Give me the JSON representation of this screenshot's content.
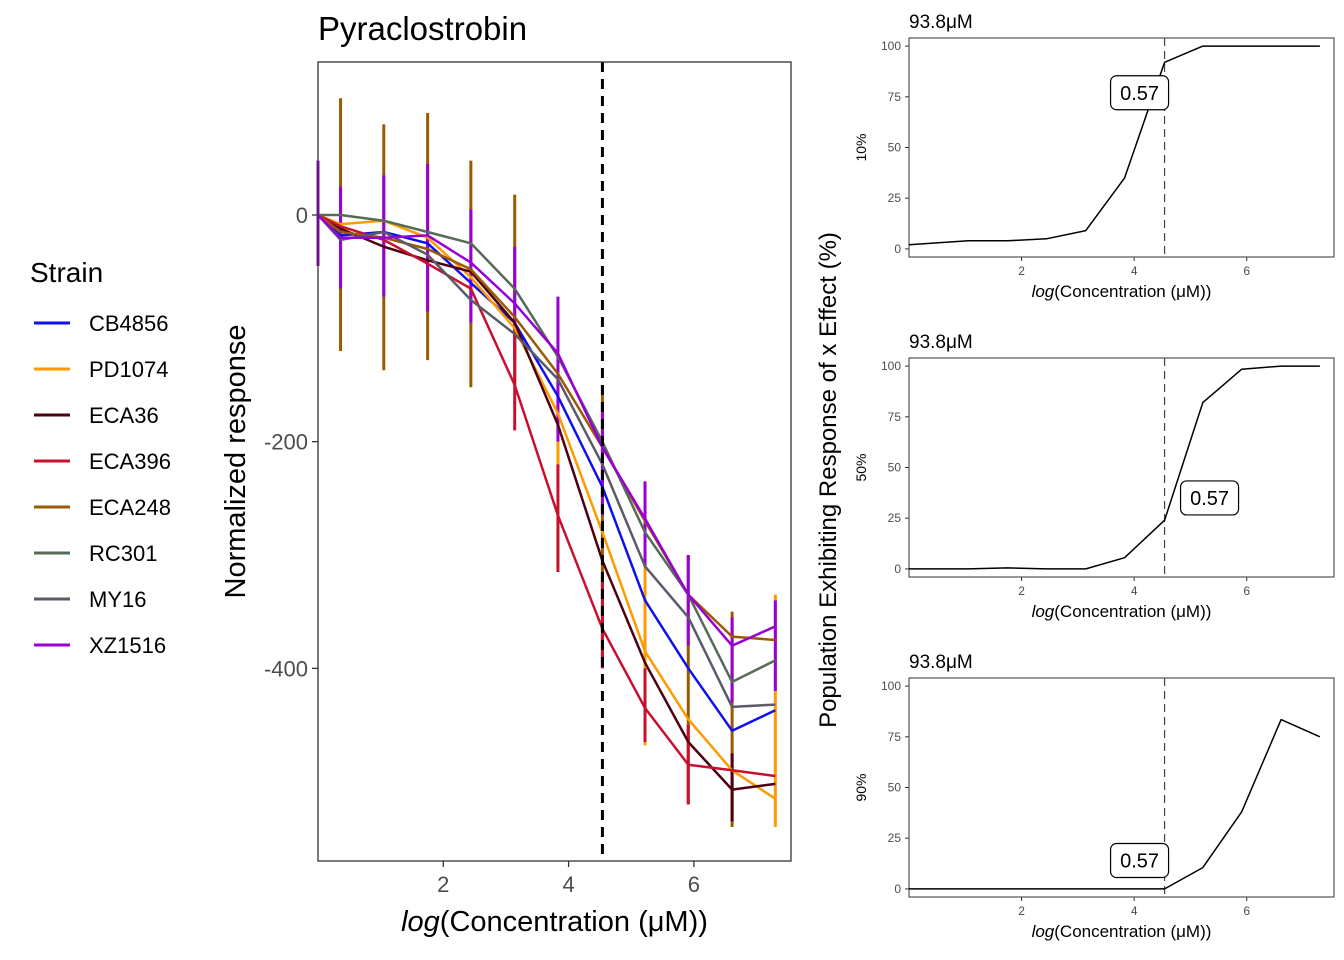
{
  "chart_data": [
    {
      "type": "line",
      "title": "Pyraclostrobin",
      "xlabel_italic": "log",
      "xlabel_rest": "Concentration (μM)",
      "ylabel": "Normalized response",
      "xlim": [
        0,
        7.55
      ],
      "ylim": [
        -570,
        135
      ],
      "xticks": [
        2,
        4,
        6
      ],
      "yticks": [
        0,
        -200,
        -400
      ],
      "ytick_labels": [
        "0",
        "-200",
        "-400"
      ],
      "vline": 4.54,
      "legend": {
        "title": "Strain",
        "position": "left",
        "entries": [
          "CB4856",
          "PD1074",
          "ECA36",
          "ECA396",
          "ECA248",
          "RC301",
          "MY16",
          "XZ1516"
        ]
      },
      "x": [
        0,
        0.36,
        1.05,
        1.75,
        2.44,
        3.14,
        3.83,
        4.54,
        5.22,
        5.91,
        6.61,
        7.3
      ],
      "series": [
        {
          "name": "CB4856",
          "color": "#1010ee",
          "values": [
            0,
            -18,
            -15,
            -25,
            -60,
            -95,
            -160,
            -240,
            -340,
            -400,
            -455,
            -437
          ]
        },
        {
          "name": "PD1074",
          "color": "#ff9a00",
          "values": [
            0,
            -8,
            -5,
            -20,
            -55,
            -100,
            -175,
            -280,
            -385,
            -445,
            -490,
            -515
          ]
        },
        {
          "name": "ECA36",
          "color": "#4d0012",
          "values": [
            0,
            -12,
            -28,
            -40,
            -50,
            -95,
            -185,
            -305,
            -395,
            -465,
            -507,
            -502
          ]
        },
        {
          "name": "ECA396",
          "color": "#c8102e",
          "values": [
            0,
            -10,
            -22,
            -43,
            -65,
            -150,
            -265,
            -365,
            -435,
            -485,
            -490,
            -495
          ]
        },
        {
          "name": "ECA248",
          "color": "#9a5a00",
          "values": [
            0,
            -15,
            -20,
            -30,
            -48,
            -90,
            -140,
            -205,
            -270,
            -335,
            -372,
            -375
          ]
        },
        {
          "name": "RC301",
          "color": "#556b55",
          "values": [
            0,
            0,
            -5,
            -15,
            -25,
            -65,
            -125,
            -200,
            -280,
            -335,
            -412,
            -393
          ]
        },
        {
          "name": "MY16",
          "color": "#5a5a6a",
          "values": [
            0,
            -22,
            -15,
            -35,
            -75,
            -105,
            -145,
            -220,
            -310,
            -355,
            -434,
            -432
          ]
        },
        {
          "name": "XZ1516",
          "color": "#9a00d6",
          "values": [
            0,
            -20,
            -20,
            -18,
            -42,
            -78,
            -122,
            -205,
            -268,
            -335,
            -380,
            -363
          ]
        }
      ],
      "error_bars": [
        {
          "x": 0.36,
          "low": -120,
          "high": 103,
          "color": "#9a5a00"
        },
        {
          "x": 1.05,
          "low": -137,
          "high": 80,
          "color": "#9a5a00"
        },
        {
          "x": 1.75,
          "low": -128,
          "high": 90,
          "color": "#9a5a00"
        },
        {
          "x": 2.44,
          "low": -152,
          "high": 48,
          "color": "#9a5a00"
        },
        {
          "x": 3.14,
          "low": -150,
          "high": 18,
          "color": "#9a5a00"
        },
        {
          "x": 3.83,
          "low": -225,
          "high": -80,
          "color": "#ff9a00"
        },
        {
          "x": 4.54,
          "low": -400,
          "high": -150,
          "color": "#9a5a00"
        },
        {
          "x": 5.22,
          "low": -468,
          "high": -300,
          "color": "#ff9a00"
        },
        {
          "x": 5.91,
          "low": -520,
          "high": -300,
          "color": "#9a5a00"
        },
        {
          "x": 6.61,
          "low": -540,
          "high": -350,
          "color": "#9a5a00"
        },
        {
          "x": 7.3,
          "low": -540,
          "high": -335,
          "color": "#ff9a00"
        },
        {
          "x": 0,
          "low": -45,
          "high": 48,
          "color": "#9a00d6"
        },
        {
          "x": 0.36,
          "low": -65,
          "high": 25,
          "color": "#9a00d6"
        },
        {
          "x": 1.05,
          "low": -72,
          "high": 35,
          "color": "#9a00d6"
        },
        {
          "x": 1.75,
          "low": -85,
          "high": 45,
          "color": "#9a00d6"
        },
        {
          "x": 2.44,
          "low": -95,
          "high": 5,
          "color": "#9a00d6"
        },
        {
          "x": 3.14,
          "low": -128,
          "high": -28,
          "color": "#9a00d6"
        },
        {
          "x": 3.83,
          "low": -200,
          "high": -72,
          "color": "#9a00d6"
        },
        {
          "x": 4.54,
          "low": -265,
          "high": -165,
          "color": "#9a00d6"
        },
        {
          "x": 5.22,
          "low": -310,
          "high": -235,
          "color": "#9a00d6"
        },
        {
          "x": 5.91,
          "low": -380,
          "high": -300,
          "color": "#9a00d6"
        },
        {
          "x": 6.61,
          "low": -430,
          "high": -355,
          "color": "#9a00d6"
        },
        {
          "x": 7.3,
          "low": -420,
          "high": -340,
          "color": "#9a00d6"
        },
        {
          "x": 3.14,
          "low": -190,
          "high": -100,
          "color": "#c8102e"
        },
        {
          "x": 3.83,
          "low": -315,
          "high": -220,
          "color": "#c8102e"
        },
        {
          "x": 4.54,
          "low": -400,
          "high": -320,
          "color": "#c8102e"
        },
        {
          "x": 5.22,
          "low": -465,
          "high": -400,
          "color": "#c8102e"
        },
        {
          "x": 5.91,
          "low": -520,
          "high": -450,
          "color": "#c8102e"
        },
        {
          "x": 6.61,
          "low": -535,
          "high": -475,
          "color": "#4d0012"
        }
      ]
    },
    {
      "type": "line",
      "title": "93.8μM",
      "ylabel": "10%",
      "xlabel_italic": "log",
      "xlabel_rest": "Concentration (μM)",
      "xlim": [
        0,
        7.55
      ],
      "ylim": [
        -4,
        104
      ],
      "xticks": [
        2,
        4,
        6
      ],
      "yticks": [
        0,
        25,
        50,
        75,
        100
      ],
      "vline": 4.54,
      "annotation": {
        "text": "0.57",
        "x": 4.54,
        "y": 77
      },
      "x": [
        0,
        1.05,
        1.75,
        2.44,
        3.14,
        3.83,
        4.54,
        5.22,
        5.91,
        6.61,
        7.3
      ],
      "values": [
        2,
        4,
        4,
        5,
        9,
        35,
        92,
        100,
        100,
        100,
        100
      ]
    },
    {
      "type": "line",
      "title": "93.8μM",
      "ylabel": "50%",
      "xlabel_italic": "log",
      "xlabel_rest": "Concentration (μM)",
      "xlim": [
        0,
        7.55
      ],
      "ylim": [
        -4,
        104
      ],
      "xticks": [
        2,
        4,
        6
      ],
      "yticks": [
        0,
        25,
        50,
        75,
        100
      ],
      "vline": 4.54,
      "annotation": {
        "text": "0.57",
        "x": 4.54,
        "y": 35
      },
      "x": [
        0,
        1.05,
        1.75,
        2.44,
        3.14,
        3.83,
        4.54,
        5.22,
        5.91,
        6.61,
        7.3
      ],
      "values": [
        0,
        0,
        0.5,
        0,
        0,
        5.5,
        24,
        82,
        98.5,
        100,
        100
      ]
    },
    {
      "type": "line",
      "title": "93.8μM",
      "ylabel": "90%",
      "xlabel_italic": "log",
      "xlabel_rest": "Concentration (μM)",
      "xlim": [
        0,
        7.55
      ],
      "ylim": [
        -4,
        104
      ],
      "xticks": [
        2,
        4,
        6
      ],
      "yticks": [
        0,
        25,
        50,
        75,
        100
      ],
      "vline": 4.54,
      "annotation": {
        "text": "0.57",
        "x": 4.54,
        "y": 14
      },
      "x": [
        0,
        1.05,
        1.75,
        2.44,
        3.14,
        3.83,
        4.54,
        5.22,
        5.91,
        6.61,
        7.3
      ],
      "values": [
        0,
        0,
        0,
        0,
        0,
        0,
        0,
        10.5,
        38,
        83.5,
        75
      ]
    }
  ],
  "shared_ylabel": "Population Exhibiting Response of x Effect (%)"
}
